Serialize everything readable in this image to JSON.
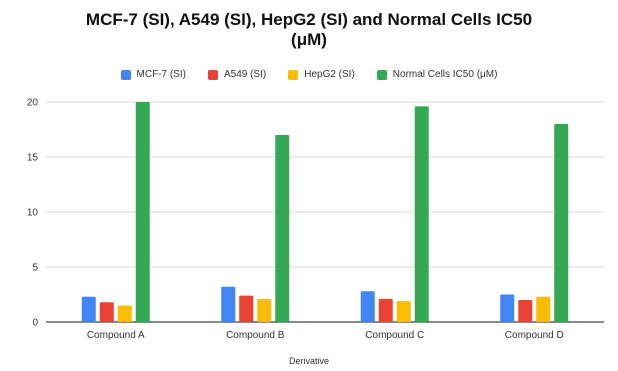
{
  "chart_data": {
    "type": "bar",
    "title_lines": [
      "MCF-7 (SI), A549 (SI), HepG2 (SI) and Normal Cells IC50",
      "(μM)"
    ],
    "xlabel": "Derivative",
    "ylabel": "",
    "categories": [
      "Compound A",
      "Compound B",
      "Compound C",
      "Compound D"
    ],
    "ylim": [
      0,
      20
    ],
    "yticks": [
      "0",
      "5",
      "10",
      "15",
      "20"
    ],
    "legend_position": "top",
    "grid": "horizontal",
    "series": [
      {
        "name": "MCF-7 (SI)",
        "color": "#4285f4",
        "values": [
          2.3,
          3.2,
          2.8,
          2.5
        ]
      },
      {
        "name": "A549 (SI)",
        "color": "#ea4335",
        "values": [
          1.8,
          2.4,
          2.1,
          2.0
        ]
      },
      {
        "name": "HepG2 (SI)",
        "color": "#fbbc04",
        "values": [
          1.5,
          2.1,
          1.9,
          2.3
        ]
      },
      {
        "name": "Normal Cells IC50 (μM)",
        "color": "#34a853",
        "values": [
          20,
          17,
          19.6,
          18
        ]
      }
    ]
  }
}
